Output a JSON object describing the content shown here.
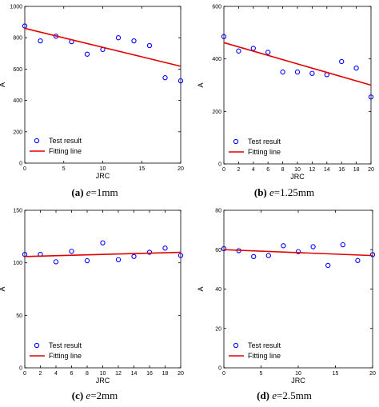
{
  "chart_data": [
    {
      "type": "scatter",
      "caption": {
        "letter": "(a)",
        "var": "e",
        "value": "=1mm"
      },
      "xlabel": "JRC",
      "ylabel": "A",
      "xlim": [
        0,
        20
      ],
      "ylim": [
        0,
        1000
      ],
      "xticks": [
        "0",
        "5",
        "10",
        "15",
        "20"
      ],
      "yticks": [
        "0",
        "200",
        "400",
        "600",
        "800",
        "1000"
      ],
      "grid": false,
      "legend_placement": "bottom-left",
      "legend": [
        "Test result",
        "Fitting line"
      ],
      "series": [
        {
          "name": "Test result",
          "kind": "points",
          "x": [
            0,
            2,
            4,
            6,
            8,
            10,
            12,
            14,
            16,
            18,
            20
          ],
          "y": [
            875,
            780,
            810,
            775,
            695,
            725,
            800,
            780,
            750,
            545,
            525
          ]
        },
        {
          "name": "Fitting line",
          "kind": "line",
          "x": [
            0,
            20
          ],
          "y": [
            860,
            618
          ]
        }
      ]
    },
    {
      "type": "scatter",
      "caption": {
        "letter": "(b)",
        "var": "e",
        "value": "=1.25mm"
      },
      "xlabel": "JRC",
      "ylabel": "A",
      "xlim": [
        0,
        20
      ],
      "ylim": [
        0,
        600
      ],
      "xticks": [
        "0",
        "2",
        "4",
        "6",
        "8",
        "10",
        "12",
        "14",
        "16",
        "18",
        "20"
      ],
      "yticks": [
        "0",
        "200",
        "400",
        "600"
      ],
      "grid": false,
      "legend_placement": "bottom-left",
      "legend": [
        "Test result",
        "Fitting line"
      ],
      "series": [
        {
          "name": "Test result",
          "kind": "points",
          "x": [
            0,
            2,
            4,
            6,
            8,
            10,
            12,
            14,
            16,
            18,
            20
          ],
          "y": [
            485,
            430,
            440,
            425,
            350,
            350,
            345,
            340,
            390,
            365,
            255
          ]
        },
        {
          "name": "Fitting line",
          "kind": "line",
          "x": [
            0,
            20
          ],
          "y": [
            462,
            300
          ]
        }
      ]
    },
    {
      "type": "scatter",
      "caption": {
        "letter": "(c)",
        "var": "e",
        "value": "=2mm"
      },
      "xlabel": "JRC",
      "ylabel": "A",
      "xlim": [
        0,
        20
      ],
      "ylim": [
        0,
        150
      ],
      "xticks": [
        "0",
        "2",
        "4",
        "6",
        "8",
        "10",
        "12",
        "14",
        "16",
        "18",
        "20"
      ],
      "yticks": [
        "0",
        "50",
        "100",
        "150"
      ],
      "grid": false,
      "legend_placement": "bottom-left",
      "legend": [
        "Test result",
        "Fitting line"
      ],
      "series": [
        {
          "name": "Test result",
          "kind": "points",
          "x": [
            0,
            2,
            4,
            6,
            8,
            10,
            12,
            14,
            16,
            18,
            20
          ],
          "y": [
            108,
            108,
            101,
            111,
            102,
            119,
            103,
            106,
            110,
            114,
            107
          ]
        },
        {
          "name": "Fitting line",
          "kind": "line",
          "x": [
            0,
            20
          ],
          "y": [
            106,
            110
          ]
        }
      ]
    },
    {
      "type": "scatter",
      "caption": {
        "letter": "(d)",
        "var": "e",
        "value": "=2.5mm"
      },
      "xlabel": "JRC",
      "ylabel": "A",
      "xlim": [
        0,
        20
      ],
      "ylim": [
        0,
        80
      ],
      "xticks": [
        "0",
        "5",
        "10",
        "15",
        "20"
      ],
      "yticks": [
        "0",
        "20",
        "40",
        "60",
        "80"
      ],
      "grid": false,
      "legend_placement": "bottom-left",
      "legend": [
        "Test result",
        "Fitting line"
      ],
      "series": [
        {
          "name": "Test result",
          "kind": "points",
          "x": [
            0,
            2,
            4,
            6,
            8,
            10,
            12,
            14,
            16,
            18,
            20
          ],
          "y": [
            60.5,
            59.5,
            56.5,
            57,
            62,
            59,
            61.5,
            52,
            62.5,
            54.5,
            57.5
          ]
        },
        {
          "name": "Fitting line",
          "kind": "line",
          "x": [
            0,
            20
          ],
          "y": [
            60,
            57
          ]
        }
      ]
    }
  ],
  "colors": {
    "points": "#0000ff",
    "fit_line": "#e00000",
    "axes": "#000000"
  }
}
